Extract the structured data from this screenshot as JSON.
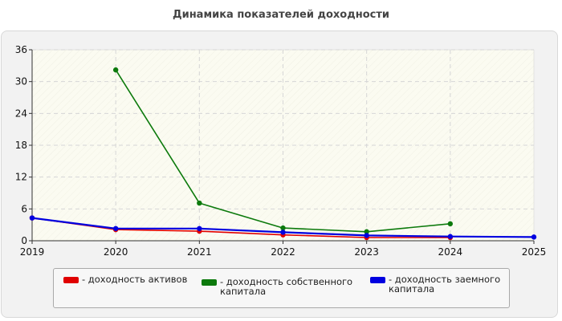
{
  "chart_title": "Динамика показателей доходности",
  "colors": {
    "series_assets": "#e00000",
    "series_equity": "#0c7a0c",
    "series_debt": "#0000e0"
  },
  "chart_data": {
    "type": "line",
    "title": "Динамика показателей доходности",
    "xlabel": "",
    "ylabel": "",
    "x": [
      2019,
      2020,
      2021,
      2022,
      2023,
      2024,
      2025
    ],
    "x_tick_labels": [
      "2019",
      "2020",
      "2021",
      "2022",
      "2023",
      "2024",
      "2025"
    ],
    "y_tick_labels": [
      "0",
      "6",
      "12",
      "18",
      "24",
      "30",
      "36"
    ],
    "xlim": [
      2019,
      2025
    ],
    "ylim": [
      0,
      36
    ],
    "grid": true,
    "legend_position": "bottom",
    "series": [
      {
        "name": "- доходность активов",
        "color": "#e00000",
        "x": [
          2019,
          2020,
          2021,
          2022,
          2023,
          2024
        ],
        "values": [
          4.3,
          2.1,
          1.8,
          1.1,
          0.6,
          0.6
        ]
      },
      {
        "name": "- доходность собственного капитала",
        "color": "#0c7a0c",
        "x": [
          2020,
          2021,
          2022,
          2023,
          2024
        ],
        "values": [
          32.2,
          7.1,
          2.4,
          1.7,
          3.2
        ]
      },
      {
        "name": "- доходность заемного капитала",
        "color": "#0000e0",
        "x": [
          2019,
          2020,
          2021,
          2022,
          2023,
          2024,
          2025
        ],
        "values": [
          4.3,
          2.3,
          2.3,
          1.6,
          1.0,
          0.8,
          0.7
        ]
      }
    ]
  },
  "legend": {
    "items": [
      {
        "label": "- доходность активов",
        "color": "#e00000"
      },
      {
        "label": "- доходность собственного капитала",
        "color": "#0c7a0c"
      },
      {
        "label": "- доходность заемного капитала",
        "color": "#0000e0"
      }
    ]
  }
}
